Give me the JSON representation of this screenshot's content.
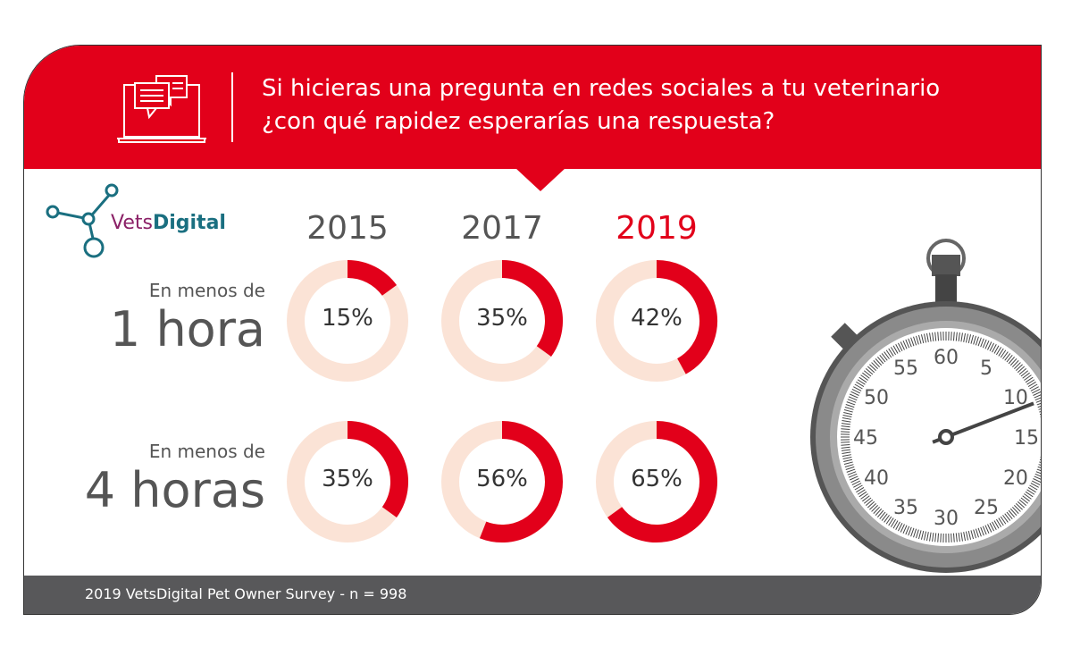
{
  "header": {
    "title_line1": "Si hicieras una pregunta en redes sociales a tu veterinario",
    "title_line2": "¿con qué rapidez esperarías una respuesta?",
    "icon": "laptop-chat-icon"
  },
  "logo": {
    "part1": "Vets",
    "part2": "Digital"
  },
  "colors": {
    "red": "#e2001a",
    "track": "#fbe3d6",
    "text": "#555555",
    "footer": "#58585a",
    "highlight_year": "#e2001a"
  },
  "chart_data": {
    "type": "donut",
    "categories": [
      "2015",
      "2017",
      "2019"
    ],
    "highlight_category": "2019",
    "series": [
      {
        "name": "En menos de 1 hora",
        "label_small": "En menos de",
        "label_big": "1 hora",
        "values": [
          15,
          35,
          42
        ]
      },
      {
        "name": "En menos de 4 horas",
        "label_small": "En menos de",
        "label_big": "4 horas",
        "values": [
          35,
          56,
          65
        ]
      }
    ],
    "unit": "%"
  },
  "stopwatch": {
    "labels": [
      "60",
      "5",
      "10",
      "15",
      "20",
      "25",
      "30",
      "35",
      "40",
      "45",
      "50",
      "55"
    ],
    "hand_seconds": 11.5
  },
  "footer": {
    "text": "2019 VetsDigital Pet Owner Survey - n = 998"
  }
}
